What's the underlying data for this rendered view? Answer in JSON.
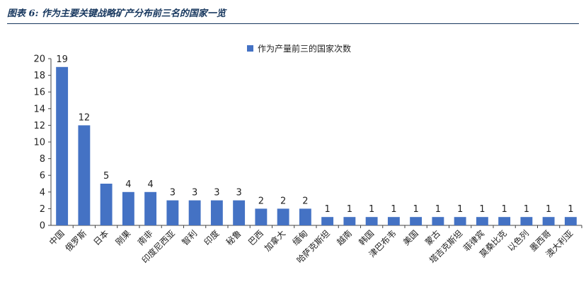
{
  "figure": {
    "title": "图表 6:  作为主要关键战略矿产分布前三名的国家一览"
  },
  "chart_data": {
    "type": "bar",
    "title": "",
    "xlabel": "",
    "ylabel": "",
    "ylim": [
      0,
      20
    ],
    "yticks": [
      0,
      2,
      4,
      6,
      8,
      10,
      12,
      14,
      16,
      18,
      20
    ],
    "grid": false,
    "legend_position": "top-right",
    "bar_color": "#4472C4",
    "categories": [
      "中国",
      "俄罗斯",
      "日本",
      "刚果",
      "南非",
      "印度尼西亚",
      "智利",
      "印度",
      "秘鲁",
      "巴西",
      "加拿大",
      "缅甸",
      "哈萨克斯坦",
      "越南",
      "韩国",
      "津巴布韦",
      "美国",
      "蒙古",
      "塔吉克斯坦",
      "菲律宾",
      "莫桑比克",
      "以色列",
      "墨西哥",
      "澳大利亚"
    ],
    "series": [
      {
        "name": "作为产量前三的国家次数",
        "values": [
          19,
          12,
          5,
          4,
          4,
          3,
          3,
          3,
          3,
          2,
          2,
          2,
          1,
          1,
          1,
          1,
          1,
          1,
          1,
          1,
          1,
          1,
          1,
          1
        ]
      }
    ]
  }
}
